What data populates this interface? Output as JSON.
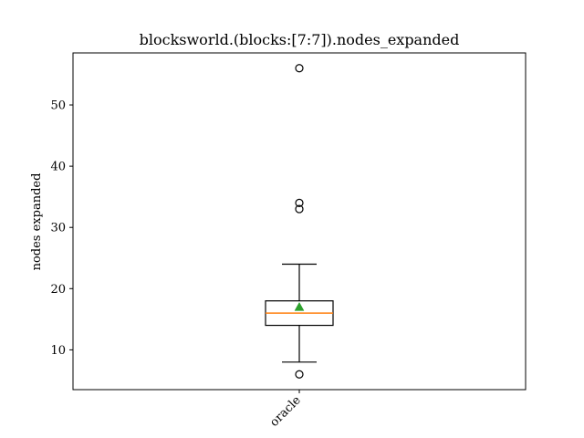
{
  "chart_data": {
    "type": "box",
    "title": "blocksworld.(blocks:[7:7]).nodes_expanded",
    "xlabel": "",
    "ylabel": "nodes expanded",
    "ylim": [
      3.5,
      58.5
    ],
    "yticks": [
      10,
      20,
      30,
      40,
      50
    ],
    "grid": false,
    "categories": [
      "oracle"
    ],
    "boxes": [
      {
        "category": "oracle",
        "whisker_low": 8,
        "q1": 14,
        "median": 16,
        "mean": 17,
        "q3": 18,
        "whisker_high": 24,
        "outliers": [
          6,
          33,
          34,
          56
        ]
      }
    ],
    "colors": {
      "box": "#000000",
      "median": "#ff7f0e",
      "mean": "#2ca02c",
      "outlier": "#000000"
    }
  }
}
